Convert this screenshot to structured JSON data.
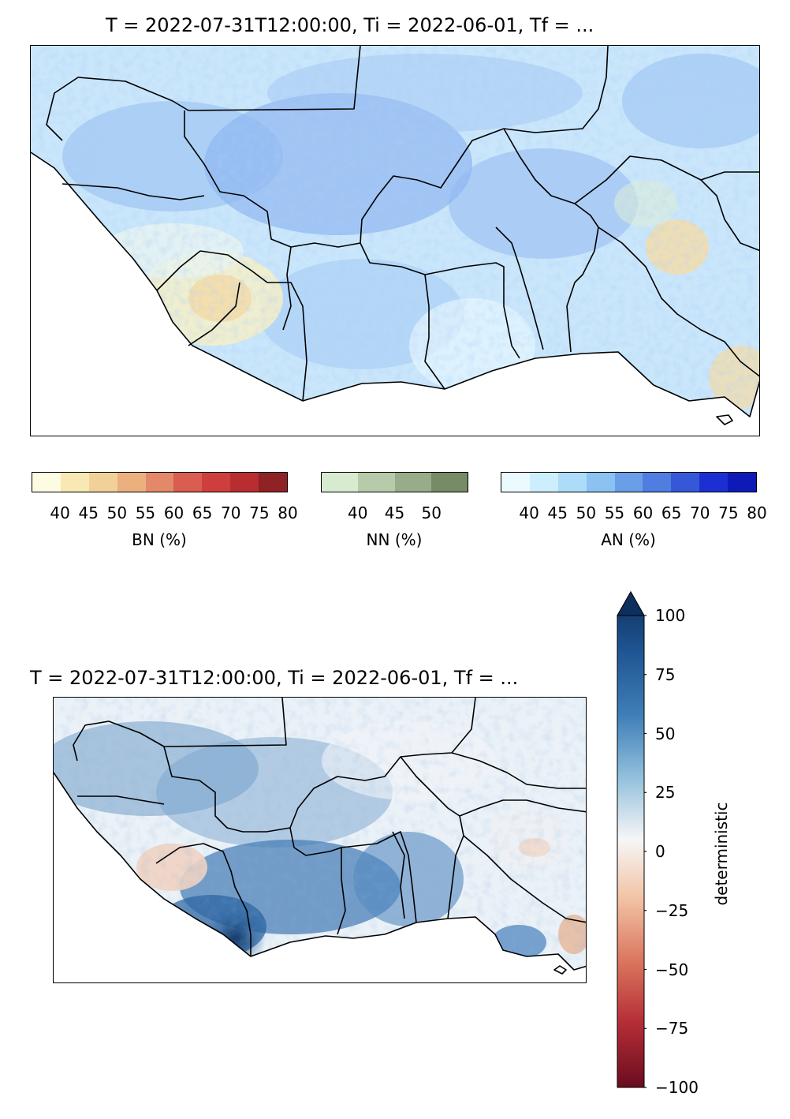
{
  "maps": [
    {
      "title": "T = 2022-07-31T12:00:00, Ti = 2022-06-01, Tf = ...",
      "variable": "tercile probability (BN / NN / AN)"
    },
    {
      "title": "T = 2022-07-31T12:00:00, Ti = 2022-06-01, Tf = ...",
      "variable": "deterministic"
    }
  ],
  "legends": {
    "bn": {
      "label": "BN (%)",
      "ticks": [
        "40",
        "45",
        "50",
        "55",
        "60",
        "65",
        "70",
        "75",
        "80"
      ],
      "colors": [
        "#fefbe3",
        "#f8e8b4",
        "#f1d198",
        "#ebb07e",
        "#e3896a",
        "#d95d50",
        "#cd3e3c",
        "#b82e30",
        "#8e2224"
      ]
    },
    "nn": {
      "label": "NN (%)",
      "ticks": [
        "40",
        "45",
        "50"
      ],
      "colors": [
        "#d6ebcf",
        "#b5cba9",
        "#97ad8a",
        "#758c67"
      ]
    },
    "an": {
      "label": "AN (%)",
      "ticks": [
        "40",
        "45",
        "50",
        "55",
        "60",
        "65",
        "70",
        "75",
        "80"
      ],
      "colors": [
        "#eafaff",
        "#cdeefd",
        "#addcf8",
        "#8bc2f2",
        "#6a9fe8",
        "#4f7ee0",
        "#3558d9",
        "#1c2fd3",
        "#0e1ab8"
      ]
    },
    "deterministic": {
      "label": "deterministic",
      "ticks": [
        "100",
        "75",
        "50",
        "25",
        "0",
        "−25",
        "−50",
        "−75",
        "−100"
      ],
      "range": [
        -100,
        100
      ],
      "extend": "max"
    }
  }
}
